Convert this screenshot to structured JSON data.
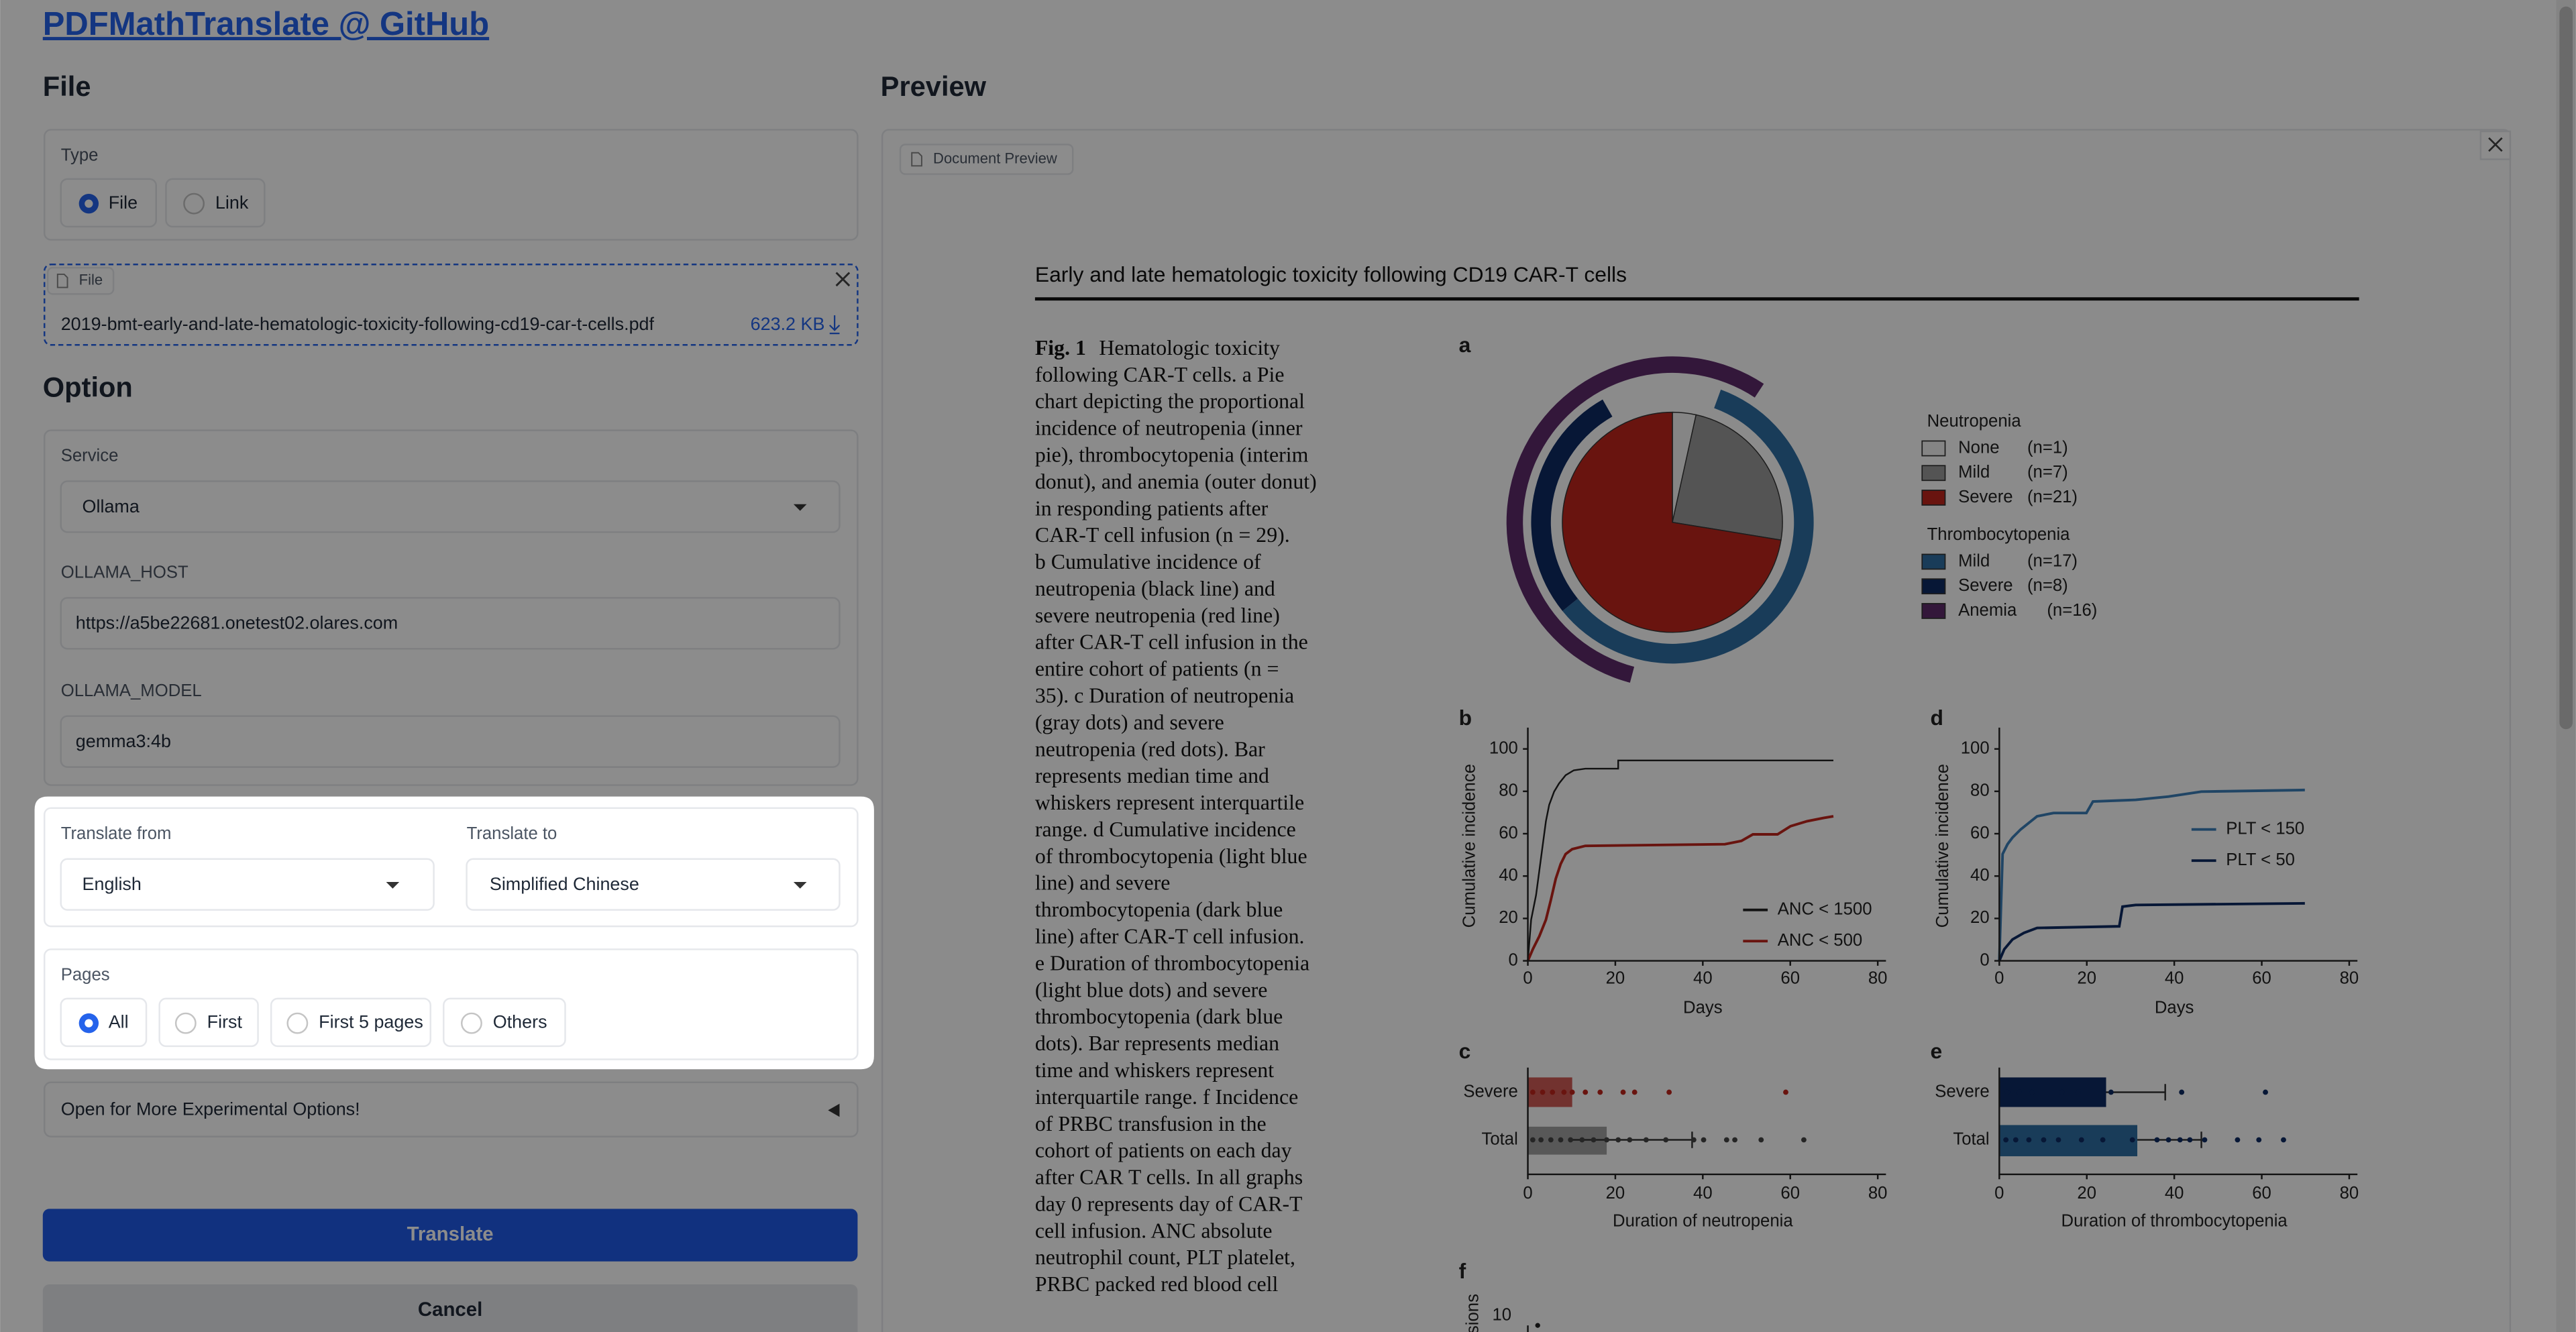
{
  "header": {
    "title": "PDFMathTranslate @ GitHub"
  },
  "file_section": {
    "title": "File",
    "type_label": "Type",
    "type_options": [
      "File",
      "Link"
    ],
    "upload_label": "File",
    "file_name": "2019-bmt-early-and-late-hematologic-toxicity-following-cd19-car-t-cells.pdf",
    "file_size": "623.2 KB"
  },
  "option_section": {
    "title": "Option",
    "service_label": "Service",
    "service": "Ollama",
    "host_label": "OLLAMA_HOST",
    "host": "https://a5be22681.onetest02.olares.com",
    "model_label": "OLLAMA_MODEL",
    "model": "gemma3:4b",
    "translate_from_label": "Translate from",
    "translate_from": "English",
    "translate_to_label": "Translate to",
    "translate_to": "Simplified Chinese",
    "pages_label": "Pages",
    "pages_options": [
      "All",
      "First",
      "First 5 pages",
      "Others"
    ],
    "experimental": "Open for More Experimental Options!"
  },
  "buttons": {
    "translate": "Translate",
    "cancel": "Cancel"
  },
  "preview": {
    "title": "Preview",
    "tab": "Document Preview",
    "doc": {
      "title": "Early and late hematologic toxicity following CD19 CAR-T cells",
      "caption": {
        "label": "Fig. 1",
        "lines": [
          "Hematologic toxicity",
          "following CAR-T cells. a Pie",
          "chart depicting the proportional",
          "incidence of neutropenia (inner",
          "pie), thrombocytopenia (interim",
          "donut), and anemia (outer donut)",
          "in responding patients after",
          "CAR-T cell infusion (n = 29).",
          "b Cumulative incidence of",
          "neutropenia (black line) and",
          "severe neutropenia (red line)",
          "after CAR-T cell infusion in the",
          "entire cohort of patients (n =",
          "35). c Duration of neutropenia",
          "(gray dots) and severe",
          "neutropenia (red dots). Bar",
          "represents median time and",
          "whiskers represent interquartile",
          "range. d Cumulative incidence",
          "of thrombocytopenia (light blue",
          "line) and severe",
          "thrombocytopenia (dark blue",
          "line) after CAR-T cell infusion.",
          "e Duration of thrombocytopenia",
          "(light blue dots) and severe",
          "thrombocytopenia (dark blue",
          "dots). Bar represents median",
          "time and whiskers represent",
          "interquartile range. f Incidence",
          "of PRBC transfusion in the",
          "cohort of patients on each day",
          "after CAR T cells. In all graphs",
          "day 0 represents day of CAR-T",
          "cell infusion. ANC absolute",
          "neutrophil count, PLT platelet,",
          "PRBC packed red blood cell"
        ]
      },
      "figure": {
        "a": {
          "letter": "a",
          "groups": [
            {
              "name": "Neutropenia",
              "items": [
                {
                  "name": "None",
                  "count": 1,
                  "count_label": "(n=1)",
                  "color": "#f2f2f2"
                },
                {
                  "name": "Mild",
                  "count": 7,
                  "count_label": "(n=7)",
                  "color": "#9a9a9a"
                },
                {
                  "name": "Severe",
                  "count": 21,
                  "count_label": "(n=21)",
                  "color": "#c0261d"
                }
              ]
            },
            {
              "name": "Thrombocytopenia",
              "items": [
                {
                  "name": "Mild",
                  "count": 17,
                  "count_label": "(n=17)",
                  "color": "#2f6ea3"
                },
                {
                  "name": "Severe",
                  "count": 8,
                  "count_label": "(n=8)",
                  "color": "#0d2a63"
                },
                {
                  "name": "Anemia",
                  "count": 16,
                  "count_label": "(n=16)",
                  "color": "#5e2a6b"
                }
              ]
            }
          ]
        },
        "b": {
          "letter": "b",
          "ylabel": "Cumulative incidence",
          "xlabel": "Days",
          "yticks": [
            0,
            20,
            40,
            60,
            80,
            100
          ],
          "xticks": [
            0,
            20,
            40,
            60,
            80
          ],
          "legend": [
            "ANC < 1500",
            "ANC < 500"
          ]
        },
        "d": {
          "letter": "d",
          "ylabel": "Cumulative incidence",
          "xlabel": "Days",
          "yticks": [
            0,
            20,
            40,
            60,
            80,
            100
          ],
          "xticks": [
            0,
            20,
            40,
            60,
            80
          ],
          "legend": [
            "PLT < 150",
            "PLT < 50"
          ]
        },
        "c": {
          "letter": "c",
          "categories": [
            "Severe",
            "Total"
          ],
          "xlabel": "Duration of neutropenia",
          "xticks": [
            0,
            20,
            40,
            60,
            80
          ]
        },
        "e": {
          "letter": "e",
          "categories": [
            "Severe",
            "Total"
          ],
          "xlabel": "Duration of thrombocytopenia",
          "xticks": [
            0,
            20,
            40,
            60,
            80
          ]
        },
        "f": {
          "letter": "f",
          "ylabel": "sions",
          "yticks": [
            10
          ]
        }
      }
    }
  }
}
